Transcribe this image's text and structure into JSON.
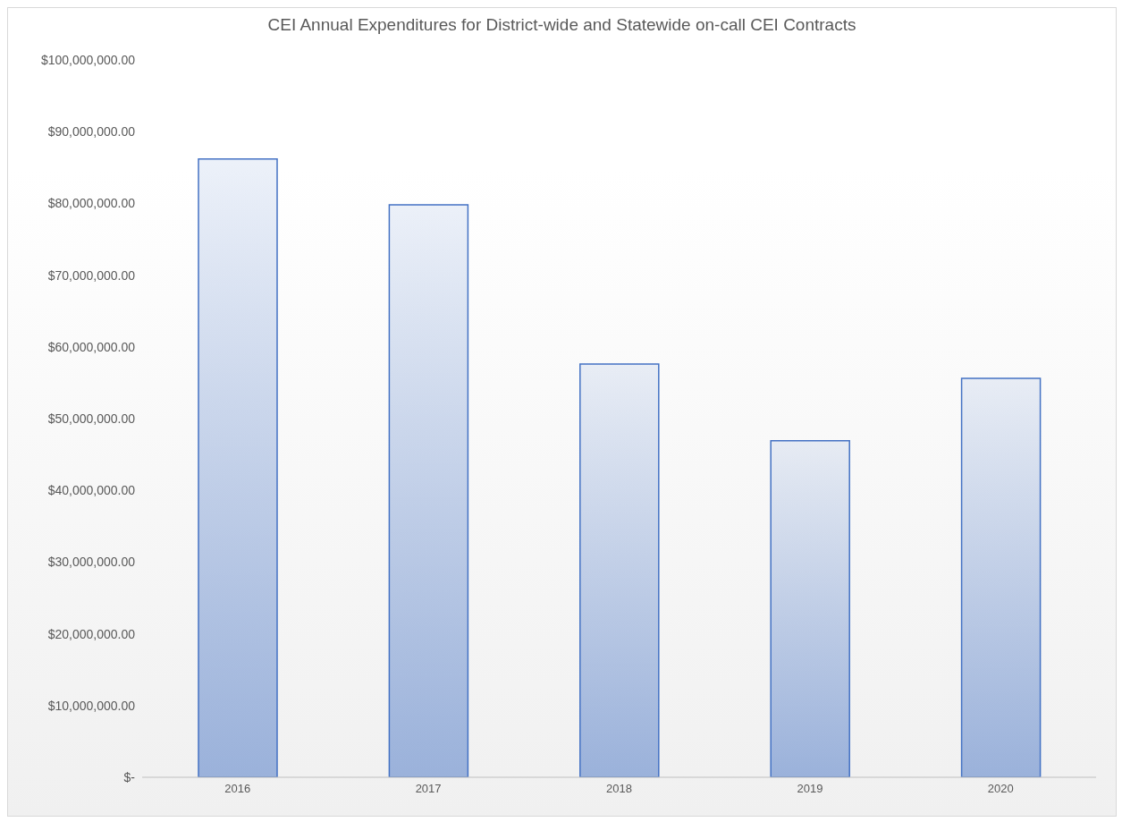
{
  "chart_data": {
    "type": "bar",
    "title": "CEI Annual Expenditures for District-wide and Statewide on-call CEI Contracts",
    "categories": [
      "2016",
      "2017",
      "2018",
      "2019",
      "2020"
    ],
    "values": [
      86200000,
      79800000,
      57600000,
      46900000,
      55600000
    ],
    "color": "#4472c4",
    "ylim": [
      0,
      100000000
    ],
    "yticks": [
      {
        "value": 0,
        "label": "$-"
      },
      {
        "value": 10000000,
        "label": "$10,000,000.00"
      },
      {
        "value": 20000000,
        "label": "$20,000,000.00"
      },
      {
        "value": 30000000,
        "label": "$30,000,000.00"
      },
      {
        "value": 40000000,
        "label": "$40,000,000.00"
      },
      {
        "value": 50000000,
        "label": "$50,000,000.00"
      },
      {
        "value": 60000000,
        "label": "$60,000,000.00"
      },
      {
        "value": 70000000,
        "label": "$70,000,000.00"
      },
      {
        "value": 80000000,
        "label": "$80,000,000.00"
      },
      {
        "value": 90000000,
        "label": "$90,000,000.00"
      },
      {
        "value": 100000000,
        "label": "$100,000,000.00"
      }
    ],
    "grid": false
  }
}
